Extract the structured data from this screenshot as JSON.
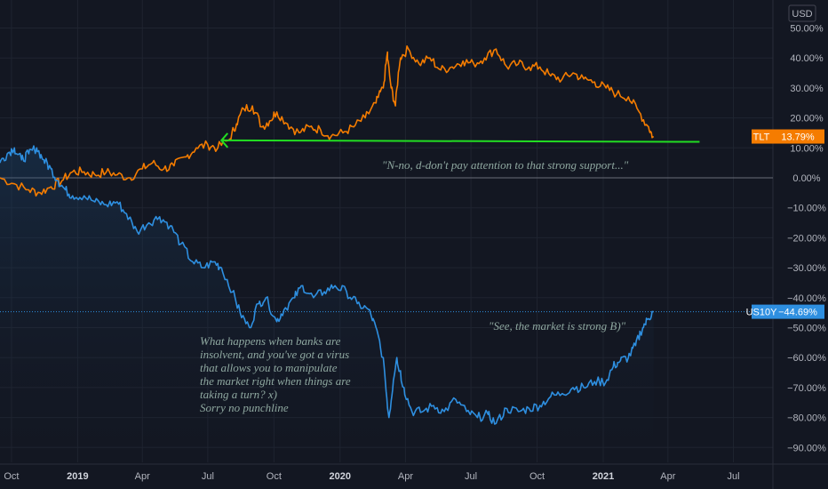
{
  "chart_data": {
    "type": "line",
    "unit": "USD",
    "y_range": [
      -95,
      55
    ],
    "grid": true,
    "y_ticks": [
      {
        "value": 50,
        "label": "50.00%"
      },
      {
        "value": 40,
        "label": "40.00%"
      },
      {
        "value": 30,
        "label": "30.00%"
      },
      {
        "value": 20,
        "label": "20.00%"
      },
      {
        "value": 10,
        "label": "10.00%"
      },
      {
        "value": 0,
        "label": "0.00%"
      },
      {
        "value": -10,
        "label": "−10.00%"
      },
      {
        "value": -20,
        "label": "−20.00%"
      },
      {
        "value": -30,
        "label": "−30.00%"
      },
      {
        "value": -40,
        "label": "−40.00%"
      },
      {
        "value": -50,
        "label": "−50.00%"
      },
      {
        "value": -60,
        "label": "−60.00%"
      },
      {
        "value": -70,
        "label": "−70.00%"
      },
      {
        "value": -80,
        "label": "−80.00%"
      },
      {
        "value": -90,
        "label": "−90.00%"
      }
    ],
    "x_range": [
      "2018-09-15",
      "2021-08-25"
    ],
    "x_ticks": [
      {
        "date": "2018-10-01",
        "label": "Oct",
        "bold": false
      },
      {
        "date": "2019-01-01",
        "label": "2019",
        "bold": true
      },
      {
        "date": "2019-04-01",
        "label": "Apr",
        "bold": false
      },
      {
        "date": "2019-07-01",
        "label": "Jul",
        "bold": false
      },
      {
        "date": "2019-10-01",
        "label": "Oct",
        "bold": false
      },
      {
        "date": "2020-01-01",
        "label": "2020",
        "bold": true
      },
      {
        "date": "2020-04-01",
        "label": "Apr",
        "bold": false
      },
      {
        "date": "2020-07-01",
        "label": "Jul",
        "bold": false
      },
      {
        "date": "2020-10-01",
        "label": "Oct",
        "bold": false
      },
      {
        "date": "2021-01-01",
        "label": "2021",
        "bold": true
      },
      {
        "date": "2021-04-01",
        "label": "Apr",
        "bold": false
      },
      {
        "date": "2021-07-01",
        "label": "Jul",
        "bold": false
      }
    ],
    "series": [
      {
        "name": "TLT",
        "color": "#f57c00",
        "last_label": "13.79%",
        "last_value": 13.79,
        "points": [
          [
            "2018-09-15",
            0
          ],
          [
            "2018-10-05",
            -2
          ],
          [
            "2018-10-25",
            -4
          ],
          [
            "2018-11-10",
            -5
          ],
          [
            "2018-11-25",
            -3
          ],
          [
            "2018-12-10",
            -1
          ],
          [
            "2018-12-25",
            2
          ],
          [
            "2019-01-10",
            2
          ],
          [
            "2019-01-25",
            1
          ],
          [
            "2019-02-10",
            2
          ],
          [
            "2019-02-25",
            1
          ],
          [
            "2019-03-15",
            0
          ],
          [
            "2019-04-01",
            3
          ],
          [
            "2019-04-15",
            5
          ],
          [
            "2019-05-01",
            3
          ],
          [
            "2019-05-15",
            4
          ],
          [
            "2019-06-01",
            7
          ],
          [
            "2019-06-15",
            10
          ],
          [
            "2019-07-01",
            11
          ],
          [
            "2019-07-15",
            10
          ],
          [
            "2019-08-01",
            13
          ],
          [
            "2019-08-10",
            18
          ],
          [
            "2019-08-20",
            23
          ],
          [
            "2019-09-01",
            24
          ],
          [
            "2019-09-15",
            17
          ],
          [
            "2019-09-25",
            19
          ],
          [
            "2019-10-05",
            22
          ],
          [
            "2019-10-20",
            18
          ],
          [
            "2019-11-05",
            15
          ],
          [
            "2019-11-20",
            17
          ],
          [
            "2019-12-05",
            16
          ],
          [
            "2019-12-20",
            14
          ],
          [
            "2020-01-05",
            15
          ],
          [
            "2020-01-20",
            17
          ],
          [
            "2020-02-05",
            20
          ],
          [
            "2020-02-20",
            25
          ],
          [
            "2020-03-01",
            30
          ],
          [
            "2020-03-07",
            42
          ],
          [
            "2020-03-12",
            30
          ],
          [
            "2020-03-18",
            24
          ],
          [
            "2020-03-25",
            40
          ],
          [
            "2020-04-05",
            43
          ],
          [
            "2020-04-20",
            38
          ],
          [
            "2020-05-05",
            40
          ],
          [
            "2020-05-20",
            36
          ],
          [
            "2020-06-05",
            37
          ],
          [
            "2020-06-20",
            39
          ],
          [
            "2020-07-05",
            38
          ],
          [
            "2020-07-20",
            40
          ],
          [
            "2020-08-05",
            43
          ],
          [
            "2020-08-20",
            37
          ],
          [
            "2020-09-05",
            38
          ],
          [
            "2020-09-20",
            37
          ],
          [
            "2020-10-05",
            37
          ],
          [
            "2020-10-20",
            34
          ],
          [
            "2020-11-05",
            33
          ],
          [
            "2020-11-20",
            35
          ],
          [
            "2020-12-05",
            33
          ],
          [
            "2020-12-20",
            32
          ],
          [
            "2021-01-05",
            30
          ],
          [
            "2021-01-20",
            28
          ],
          [
            "2021-02-05",
            27
          ],
          [
            "2021-02-20",
            22
          ],
          [
            "2021-03-05",
            17
          ],
          [
            "2021-03-12",
            13.79
          ]
        ]
      },
      {
        "name": "US10Y",
        "color": "#2e8fe0",
        "last_label": "−44.69%",
        "last_value": -44.69,
        "points": [
          [
            "2018-09-15",
            5
          ],
          [
            "2018-09-25",
            8
          ],
          [
            "2018-10-05",
            10
          ],
          [
            "2018-10-15",
            6
          ],
          [
            "2018-10-25",
            8
          ],
          [
            "2018-11-05",
            10
          ],
          [
            "2018-11-15",
            6
          ],
          [
            "2018-11-25",
            3
          ],
          [
            "2018-12-05",
            -1
          ],
          [
            "2018-12-15",
            -4
          ],
          [
            "2018-12-25",
            -6
          ],
          [
            "2019-01-10",
            -6
          ],
          [
            "2019-01-25",
            -8
          ],
          [
            "2019-02-10",
            -9
          ],
          [
            "2019-02-25",
            -8
          ],
          [
            "2019-03-10",
            -12
          ],
          [
            "2019-03-25",
            -18
          ],
          [
            "2019-04-10",
            -15
          ],
          [
            "2019-04-25",
            -13
          ],
          [
            "2019-05-10",
            -16
          ],
          [
            "2019-05-25",
            -22
          ],
          [
            "2019-06-10",
            -28
          ],
          [
            "2019-06-25",
            -30
          ],
          [
            "2019-07-10",
            -28
          ],
          [
            "2019-07-20",
            -30
          ],
          [
            "2019-08-05",
            -38
          ],
          [
            "2019-08-15",
            -45
          ],
          [
            "2019-08-28",
            -50
          ],
          [
            "2019-09-10",
            -42
          ],
          [
            "2019-09-20",
            -40
          ],
          [
            "2019-10-05",
            -48
          ],
          [
            "2019-10-15",
            -44
          ],
          [
            "2019-10-30",
            -40
          ],
          [
            "2019-11-10",
            -36
          ],
          [
            "2019-11-25",
            -40
          ],
          [
            "2019-12-10",
            -38
          ],
          [
            "2019-12-25",
            -36
          ],
          [
            "2020-01-10",
            -38
          ],
          [
            "2020-01-25",
            -42
          ],
          [
            "2020-02-10",
            -44
          ],
          [
            "2020-02-20",
            -50
          ],
          [
            "2020-03-01",
            -60
          ],
          [
            "2020-03-09",
            -80
          ],
          [
            "2020-03-15",
            -68
          ],
          [
            "2020-03-20",
            -60
          ],
          [
            "2020-03-30",
            -70
          ],
          [
            "2020-04-10",
            -78
          ],
          [
            "2020-04-25",
            -78
          ],
          [
            "2020-05-10",
            -76
          ],
          [
            "2020-05-25",
            -78
          ],
          [
            "2020-06-10",
            -74
          ],
          [
            "2020-06-25",
            -78
          ],
          [
            "2020-07-10",
            -80
          ],
          [
            "2020-07-25",
            -79
          ],
          [
            "2020-08-05",
            -82
          ],
          [
            "2020-08-20",
            -77
          ],
          [
            "2020-09-05",
            -78
          ],
          [
            "2020-09-20",
            -77
          ],
          [
            "2020-10-05",
            -76
          ],
          [
            "2020-10-20",
            -73
          ],
          [
            "2020-11-05",
            -72
          ],
          [
            "2020-11-20",
            -70
          ],
          [
            "2020-12-05",
            -70
          ],
          [
            "2020-12-20",
            -68
          ],
          [
            "2021-01-05",
            -68
          ],
          [
            "2021-01-15",
            -63
          ],
          [
            "2021-01-25",
            -61
          ],
          [
            "2021-02-05",
            -60
          ],
          [
            "2021-02-15",
            -56
          ],
          [
            "2021-02-25",
            -50
          ],
          [
            "2021-03-05",
            -47
          ],
          [
            "2021-03-12",
            -44.69
          ]
        ]
      }
    ],
    "support_line": {
      "color": "#22dd22",
      "y_start": 12.5,
      "y_end": 12.0,
      "x_start": "2019-07-20",
      "x_end": "2021-05-15"
    },
    "annotations": [
      {
        "id": "tlt-note",
        "lines": [
          "\"N-no, d-don't pay attention to that strong support...\""
        ]
      },
      {
        "id": "market-note",
        "lines": [
          "\"See, the market is strong B)\""
        ]
      },
      {
        "id": "banks-note",
        "lines": [
          "What happens when banks are",
          "insolvent, and you've got a virus",
          "that allows you to manipulate",
          "the market right when things are",
          "taking a turn? x)",
          "",
          "Sorry no punchline"
        ]
      }
    ]
  }
}
